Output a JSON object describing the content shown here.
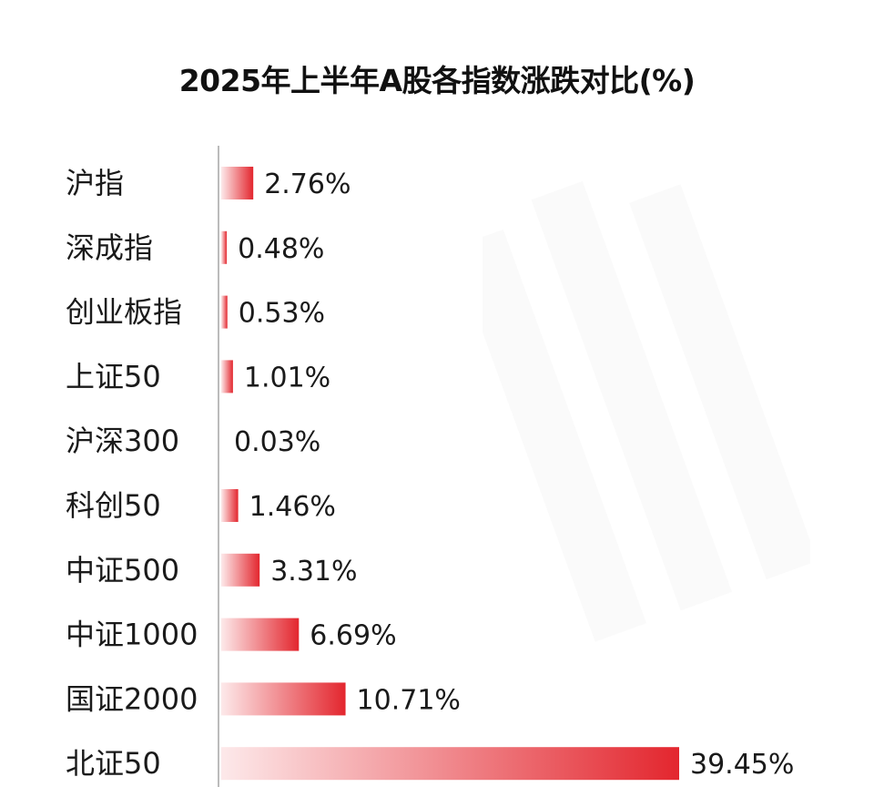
{
  "chart_data": {
    "type": "bar",
    "orientation": "horizontal",
    "title": "2025年上半年A股各指数涨跌对比(%)",
    "categories": [
      "沪指",
      "深成指",
      "创业板指",
      "上证50",
      "沪深300",
      "科创50",
      "中证500",
      "中证1000",
      "国证2000",
      "北证50"
    ],
    "values": [
      2.76,
      0.48,
      0.53,
      1.01,
      0.03,
      1.46,
      3.31,
      6.69,
      10.71,
      39.45
    ],
    "value_labels": [
      "2.76%",
      "0.48%",
      "0.53%",
      "1.01%",
      "0.03%",
      "1.46%",
      "3.31%",
      "6.69%",
      "10.71%",
      "39.45%"
    ],
    "xlim": [
      0,
      39.45
    ],
    "grid": false,
    "colors": {
      "bar_strong": "#e3262e",
      "bar_light": "#fde9ea",
      "axis": "#bbbbbb"
    }
  }
}
